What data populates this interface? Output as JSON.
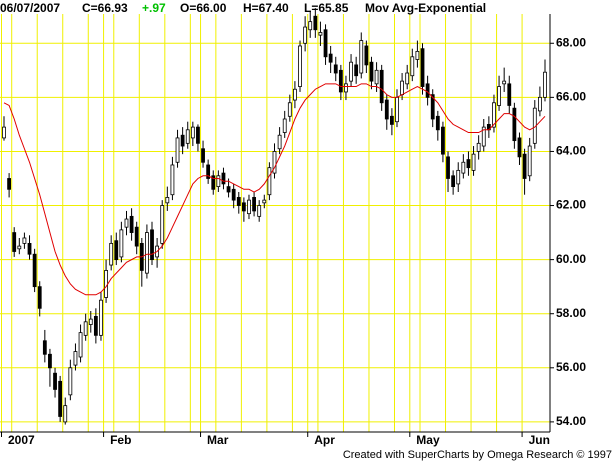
{
  "chart_data": {
    "type": "candlestick",
    "header": {
      "date": "06/07/2007",
      "close": "C=66.93",
      "change": "+.97",
      "open": "O=66.00",
      "high": "H=67.40",
      "low": "L=65.85"
    },
    "credit": "Created with SuperCharts by Omega Research © 1997",
    "categories": [
      "2007",
      null,
      null,
      null,
      null,
      null,
      null,
      null,
      null,
      null,
      null,
      null,
      null,
      null,
      null,
      null,
      null,
      null,
      null,
      null,
      "Feb",
      null,
      null,
      null,
      null,
      null,
      null,
      null,
      null,
      null,
      null,
      null,
      null,
      null,
      null,
      null,
      null,
      null,
      null,
      "Mar",
      null,
      null,
      null,
      null,
      null,
      null,
      null,
      null,
      null,
      null,
      null,
      null,
      null,
      null,
      null,
      null,
      null,
      null,
      null,
      null,
      "Apr",
      null,
      null,
      null,
      null,
      null,
      null,
      null,
      null,
      null,
      null,
      null,
      null,
      null,
      null,
      null,
      null,
      null,
      null,
      null,
      "May",
      null,
      null,
      null,
      null,
      null,
      null,
      null,
      null,
      null,
      null,
      null,
      null,
      null,
      null,
      null,
      null,
      null,
      null,
      null,
      null,
      null,
      "Jun",
      null,
      null,
      null,
      null
    ],
    "open": [
      64.5,
      63.0,
      61.0,
      60.4,
      60.6,
      60.6,
      60.2,
      59.0,
      57.0,
      56.5,
      55.8,
      55.5,
      54.0,
      55.0,
      56.1,
      56.4,
      57.2,
      57.6,
      57.9,
      57.2,
      58.6,
      59.8,
      60.7,
      60.1,
      61.2,
      61.6,
      61.2,
      60.6,
      59.5,
      61.1,
      60.1,
      60.6,
      62.1,
      62.4,
      63.6,
      64.6,
      64.3,
      64.5,
      64.9,
      64.1,
      63.5,
      63.1,
      62.7,
      63.2,
      62.7,
      62.6,
      62.3,
      62.1,
      61.7,
      62.3,
      61.6,
      62.1,
      62.4,
      63.2,
      64.1,
      64.7,
      65.3,
      65.9,
      66.4,
      68.0,
      68.5,
      69.0,
      68.3,
      68.5,
      67.6,
      67.2,
      67.0,
      66.2,
      66.6,
      67.2,
      66.9,
      67.9,
      67.3,
      66.5,
      67.0,
      65.9,
      65.3,
      65.1,
      66.1,
      66.5,
      66.8,
      67.4,
      67.8,
      66.5,
      66.1,
      65.3,
      64.9,
      63.8,
      63.1,
      62.8,
      63.2,
      63.7,
      63.3,
      64.0,
      64.2,
      65.0,
      64.9,
      65.7,
      66.5,
      66.5,
      65.6,
      64.5,
      63.9,
      63.1,
      64.3,
      65.5,
      66.0
    ],
    "high": [
      65.3,
      63.2,
      61.2,
      60.8,
      61.0,
      60.9,
      60.4,
      59.2,
      57.4,
      56.7,
      56.0,
      55.7,
      54.9,
      56.3,
      56.9,
      57.6,
      58.0,
      58.1,
      58.2,
      58.8,
      60.0,
      60.9,
      61.0,
      61.4,
      61.8,
      61.9,
      61.4,
      60.8,
      61.3,
      61.4,
      60.8,
      62.2,
      62.7,
      63.8,
      64.8,
      64.9,
      65.1,
      65.1,
      65.0,
      64.4,
      63.7,
      63.3,
      63.3,
      63.4,
      63.0,
      62.8,
      62.5,
      62.3,
      62.4,
      62.5,
      62.2,
      62.4,
      63.6,
      64.3,
      64.9,
      65.5,
      66.1,
      66.6,
      68.1,
      69.0,
      69.2,
      69.3,
      68.8,
      68.7,
      67.9,
      67.5,
      67.2,
      66.8,
      67.6,
      67.5,
      68.4,
      68.1,
      67.5,
      67.3,
      67.2,
      66.1,
      65.6,
      66.3,
      66.9,
      67.2,
      67.8,
      68.1,
      68.0,
      66.8,
      66.3,
      65.5,
      65.1,
      64.0,
      63.3,
      63.6,
      63.9,
      64.0,
      64.2,
      64.6,
      65.2,
      65.3,
      66.1,
      66.8,
      67.1,
      66.8,
      65.8,
      64.7,
      64.1,
      64.5,
      65.9,
      66.4,
      67.4
    ],
    "low": [
      64.4,
      62.3,
      60.1,
      60.2,
      60.4,
      60.0,
      58.8,
      57.9,
      56.2,
      55.3,
      54.9,
      54.0,
      53.9,
      54.8,
      55.9,
      56.2,
      57.0,
      57.3,
      56.9,
      57.0,
      58.4,
      59.6,
      59.8,
      59.9,
      60.9,
      60.7,
      60.2,
      59.0,
      59.3,
      59.8,
      59.7,
      60.4,
      61.8,
      62.2,
      63.4,
      63.9,
      64.1,
      64.2,
      64.0,
      63.4,
      62.8,
      62.4,
      62.5,
      62.6,
      62.3,
      61.9,
      61.7,
      61.4,
      61.5,
      61.6,
      61.4,
      61.9,
      62.2,
      63.0,
      63.9,
      64.5,
      65.1,
      65.6,
      66.2,
      67.7,
      68.2,
      68.2,
      67.9,
      67.2,
      66.9,
      66.6,
      65.9,
      65.9,
      66.4,
      66.5,
      66.7,
      66.9,
      66.3,
      66.2,
      65.5,
      64.8,
      64.6,
      64.9,
      65.9,
      66.3,
      66.6,
      67.1,
      66.1,
      65.7,
      64.9,
      64.4,
      63.6,
      62.5,
      62.4,
      62.5,
      63.0,
      63.1,
      63.1,
      63.7,
      64.0,
      64.5,
      64.7,
      65.5,
      66.2,
      65.4,
      64.1,
      63.5,
      62.4,
      62.9,
      64.1,
      65.3,
      65.85
    ],
    "close": [
      64.9,
      62.6,
      60.3,
      60.5,
      60.8,
      60.2,
      59.0,
      58.2,
      56.5,
      56.0,
      55.2,
      54.2,
      54.6,
      56.0,
      56.6,
      57.3,
      57.7,
      57.8,
      57.2,
      58.5,
      59.6,
      60.6,
      60.0,
      61.1,
      61.5,
      61.0,
      60.5,
      59.6,
      61.0,
      60.0,
      60.5,
      62.0,
      62.3,
      63.5,
      64.5,
      64.2,
      64.8,
      64.9,
      64.3,
      63.6,
      63.0,
      62.6,
      63.1,
      62.8,
      62.5,
      62.2,
      62.0,
      61.8,
      62.2,
      61.8,
      62.0,
      62.2,
      63.4,
      64.0,
      64.6,
      65.2,
      65.8,
      66.3,
      67.9,
      68.6,
      68.8,
      68.5,
      68.4,
      67.5,
      67.3,
      66.9,
      66.2,
      66.5,
      67.3,
      66.8,
      68.1,
      67.2,
      66.6,
      67.0,
      65.8,
      65.2,
      65.0,
      66.0,
      66.6,
      66.9,
      67.5,
      67.7,
      66.4,
      66.0,
      65.2,
      64.8,
      63.9,
      63.0,
      62.7,
      63.3,
      63.6,
      63.4,
      63.9,
      64.3,
      64.9,
      64.8,
      65.8,
      66.4,
      66.6,
      65.7,
      64.4,
      63.8,
      63.0,
      64.2,
      65.6,
      66.0,
      66.93
    ],
    "series": [
      {
        "name": "Mov Avg-Exponential",
        "color": "#e00000",
        "values": [
          65.8,
          65.7,
          65.2,
          64.6,
          64.1,
          63.6,
          63.0,
          62.4,
          61.7,
          61.0,
          60.3,
          59.8,
          59.4,
          59.1,
          58.9,
          58.8,
          58.7,
          58.7,
          58.7,
          58.8,
          59.0,
          59.3,
          59.5,
          59.7,
          59.9,
          60.0,
          60.1,
          60.1,
          60.2,
          60.2,
          60.3,
          60.5,
          60.8,
          61.2,
          61.6,
          62.0,
          62.4,
          62.8,
          63.0,
          63.1,
          63.1,
          63.0,
          63.0,
          62.9,
          62.9,
          62.8,
          62.7,
          62.6,
          62.6,
          62.5,
          62.6,
          62.8,
          63.1,
          63.4,
          63.8,
          64.2,
          64.7,
          65.2,
          65.6,
          65.9,
          66.1,
          66.3,
          66.4,
          66.5,
          66.5,
          66.5,
          66.4,
          66.4,
          66.4,
          66.4,
          66.5,
          66.5,
          66.4,
          66.4,
          66.3,
          66.1,
          66.0,
          66.0,
          66.1,
          66.2,
          66.3,
          66.4,
          66.3,
          66.2,
          66.0,
          65.8,
          65.5,
          65.2,
          65.0,
          64.9,
          64.8,
          64.7,
          64.7,
          64.7,
          64.8,
          64.8,
          65.0,
          65.2,
          65.4,
          65.4,
          65.3,
          65.1,
          64.9,
          64.8,
          64.9,
          65.1,
          65.3
        ]
      }
    ],
    "ylim": [
      53.7,
      69.6
    ],
    "yticks": [
      {
        "value": 54,
        "label": "54.00"
      },
      {
        "value": 56,
        "label": "56.00"
      },
      {
        "value": 58,
        "label": "58.00"
      },
      {
        "value": 60,
        "label": "60.00"
      },
      {
        "value": 62,
        "label": "62.00"
      },
      {
        "value": 64,
        "label": "64.00"
      },
      {
        "value": 66,
        "label": "66.00"
      },
      {
        "value": 68,
        "label": "68.00"
      }
    ],
    "grid": true,
    "grid_color": "#f0f000"
  }
}
